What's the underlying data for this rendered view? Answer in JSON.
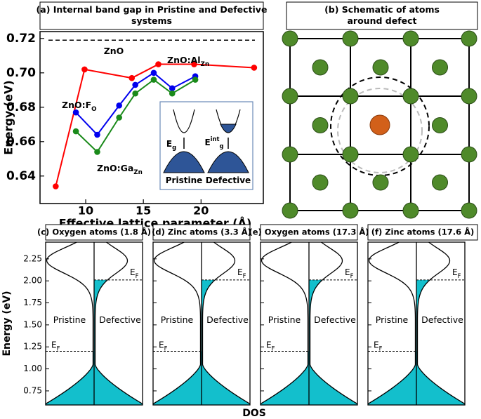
{
  "chart_data": [
    {
      "type": "line",
      "title": "(a) Internal band gap in Pristine and Defective systems",
      "xlabel": "Effective lattice parameter (Å)",
      "ylabel": "Energy (eV)",
      "xlim": [
        6.04,
        25.4
      ],
      "ylim": [
        0.624,
        0.724
      ],
      "xticks": [
        10,
        15,
        20
      ],
      "yticks": [
        0.64,
        0.66,
        0.68,
        {
          "value": 0.7,
          "label": "0.70"
        },
        0.72
      ],
      "reference": {
        "name": "ZnO",
        "value": 0.719,
        "color": "#000000"
      },
      "series": [
        {
          "name": "ZnO:Al",
          "name_sub": "Zn",
          "color": "#ff0000",
          "x": [
            7.4,
            9.9,
            14.0,
            16.3,
            19.4,
            24.6
          ],
          "values": [
            0.634,
            0.702,
            0.697,
            0.705,
            0.705,
            0.703
          ]
        },
        {
          "name": "ZnO:F",
          "name_sub": "O",
          "color": "#0000ee",
          "x": [
            9.15,
            11.0,
            12.9,
            14.3,
            15.9,
            17.5,
            19.5
          ],
          "values": [
            0.677,
            0.664,
            0.681,
            0.693,
            0.7,
            0.691,
            0.698
          ]
        },
        {
          "name": "ZnO:Ga",
          "name_sub": "Zn",
          "color": "#1a8a1a",
          "x": [
            9.15,
            11.0,
            12.9,
            14.3,
            15.9,
            17.5,
            19.5
          ],
          "values": [
            0.666,
            0.654,
            0.674,
            0.688,
            0.696,
            0.688,
            0.696
          ]
        }
      ],
      "inset": {
        "pristine": "Pristine",
        "defective": "Defective",
        "eg": "E",
        "eg_sub": "g",
        "eint": "E",
        "eint_sup": "int",
        "eint_sub": "g"
      }
    },
    {
      "type": "schematic",
      "title": "(b) Schematic of atoms around defect"
    },
    {
      "type": "dos",
      "title": "(c) Oxygen atoms (1.8 Å)"
    },
    {
      "type": "dos",
      "title": "(d) Zinc atoms (3.3 Å)"
    },
    {
      "type": "dos",
      "title": "(e) Oxygen atoms (17.3 Å)"
    },
    {
      "type": "dos",
      "title": "(f) Zinc atoms (17.6 Å)"
    }
  ],
  "figure": {
    "dos_ylabel": "Energy (eV)",
    "dos_xlabel": "DOS",
    "pristine": "Pristine",
    "defective": "Defective",
    "dos_ylim": [
      0.59,
      2.44
    ],
    "dos_yticks": [
      0.75,
      {
        "value": 1,
        "label": "1.00"
      },
      1.25,
      {
        "value": 1.5,
        "label": "1.50"
      },
      1.75,
      {
        "value": 2,
        "label": "2.00"
      },
      2.25
    ],
    "ef_label": "E",
    "ef_sub": "F",
    "ef_pristine": 1.2,
    "ef_defective": 2.01
  }
}
